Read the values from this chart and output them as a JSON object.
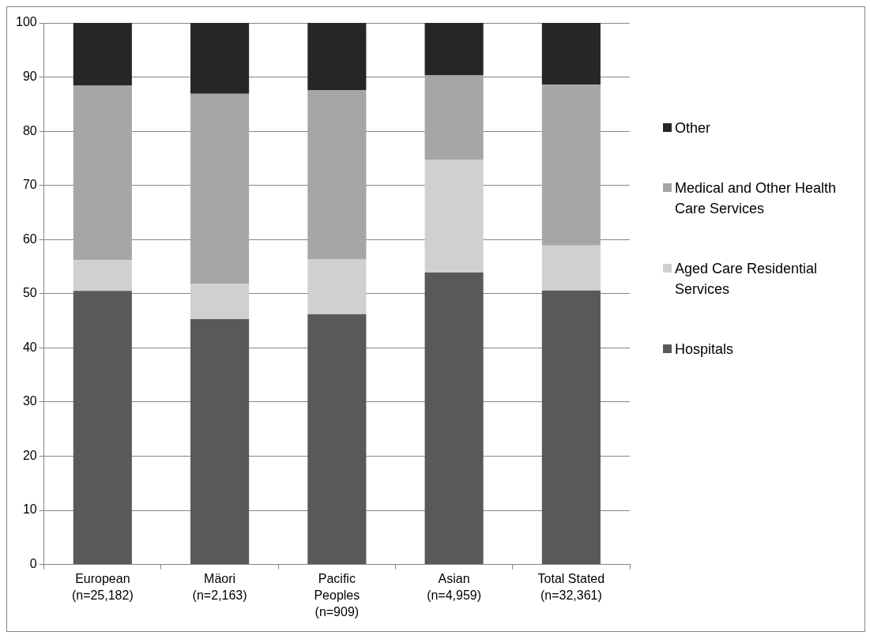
{
  "chart_data": {
    "type": "bar",
    "stacked": true,
    "categories": [
      "European (n=25,182)",
      "Mäori (n=2,163)",
      "Pacific Peoples (n=909)",
      "Asian (n=4,959)",
      "Total Stated (n=32,361)"
    ],
    "series": [
      {
        "name": "Hospitals",
        "color": "#595959",
        "values": [
          50.5,
          45.3,
          46.2,
          53.9,
          50.6
        ]
      },
      {
        "name": "Aged Care Residential Services",
        "color": "#d0d0d0",
        "values": [
          5.7,
          6.5,
          10.2,
          20.8,
          8.3
        ]
      },
      {
        "name": "Medical and Other Health Care Services",
        "color": "#a6a6a6",
        "values": [
          32.2,
          35.1,
          31.2,
          15.6,
          29.7
        ]
      },
      {
        "name": "Other",
        "color": "#262626",
        "values": [
          11.6,
          13.1,
          12.4,
          9.7,
          11.4
        ]
      }
    ],
    "ylim": [
      0,
      100
    ],
    "yticks": [
      0,
      10,
      20,
      30,
      40,
      50,
      60,
      70,
      80,
      90,
      100
    ],
    "grid": "y",
    "legend": "right"
  }
}
